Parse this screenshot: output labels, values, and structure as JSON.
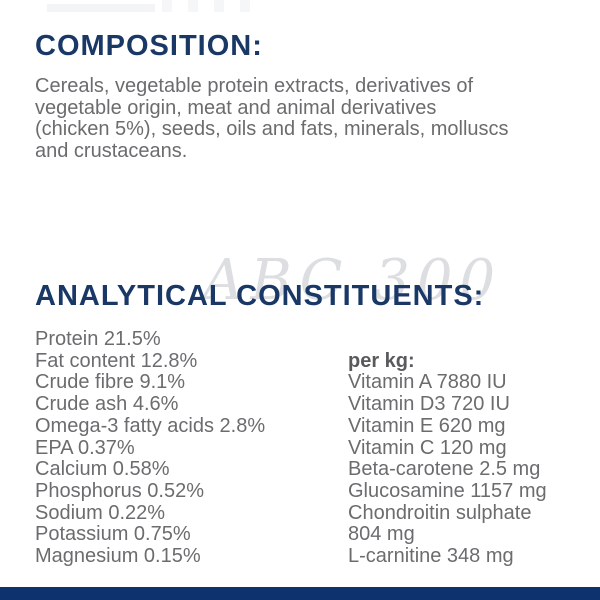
{
  "colors": {
    "heading_navy": "#1a3866",
    "body_gray": "#6b6c6e",
    "per_kg_gray": "#595a5c",
    "watermark_gray": "#dcdee1",
    "bottom_bar_navy": "#0d326e",
    "background": "#ffffff"
  },
  "composition": {
    "heading": "COMPOSITION:",
    "text": "Cereals, vegetable protein extracts, derivatives of vegetable origin, meat and animal derivatives (chicken 5%), seeds, oils and fats, minerals, molluscs and crustaceans.",
    "lines": [
      "Cereals, vegetable protein extracts, derivatives of",
      "vegetable origin, meat and animal derivatives",
      "(chicken 5%), seeds, oils and fats, minerals, molluscs",
      "and crustaceans."
    ]
  },
  "watermark": "ABC 300",
  "analytical": {
    "heading": "ANALYTICAL CONSTITUENTS:",
    "left": [
      "Protein 21.5%",
      "Fat content 12.8%",
      "Crude fibre 9.1%",
      "Crude ash 4.6%",
      "Omega-3 fatty acids 2.8%",
      "EPA 0.37%",
      "Calcium 0.58%",
      "Phosphorus 0.52%",
      "Sodium 0.22%",
      "Potassium 0.75%",
      "Magnesium 0.15%"
    ],
    "right": {
      "header": "per kg:",
      "items": [
        "Vitamin A 7880 IU",
        "Vitamin D3 720 IU",
        "Vitamin E 620 mg",
        "Vitamin C 120 mg",
        "Beta-carotene 2.5 mg",
        "Glucosamine 1157 mg",
        "Chondroitin sulphate 804 mg",
        "L-carnitine 348 mg"
      ]
    }
  }
}
